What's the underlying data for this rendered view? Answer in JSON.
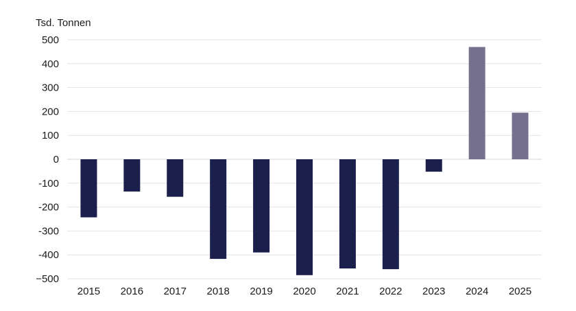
{
  "chart_data": {
    "type": "bar",
    "ylabel": "Tsd. Tonnen",
    "categories": [
      "2015",
      "2016",
      "2017",
      "2018",
      "2019",
      "2020",
      "2021",
      "2022",
      "2023",
      "2024",
      "2025"
    ],
    "values": [
      -243,
      -135,
      -157,
      -417,
      -390,
      -485,
      -457,
      -460,
      -52,
      470,
      195
    ],
    "ylim": [
      -500,
      500
    ],
    "yticks": [
      500,
      400,
      300,
      200,
      100,
      0,
      -100,
      -200,
      -300,
      -400,
      -500
    ],
    "ytick_labels": [
      "500",
      "400",
      "300",
      "200",
      "100",
      "0",
      "-100",
      "-200",
      "-300",
      "-400",
      "−500"
    ],
    "grid": true,
    "colors": {
      "actual": "#1b1f4b",
      "forecast": "#76708f"
    },
    "forecast_categories": [
      "2024",
      "2025"
    ]
  }
}
